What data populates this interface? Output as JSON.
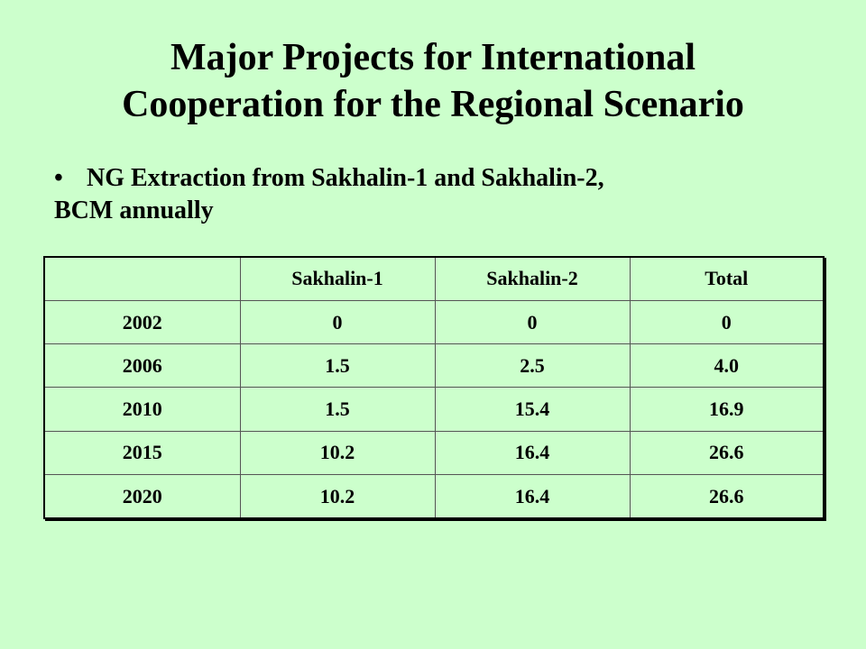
{
  "title": {
    "line1": "Major Projects for International",
    "line2": "Cooperation for the Regional Scenario"
  },
  "bullet": {
    "mark": "•",
    "line1": "NG Extraction from Sakhalin-1 and Sakhalin-2,",
    "line2": "BCM annually"
  },
  "table": {
    "headers": [
      "",
      "Sakhalin-1",
      "Sakhalin-2",
      "Total"
    ],
    "rows": [
      [
        "2002",
        "0",
        "0",
        "0"
      ],
      [
        "2006",
        "1.5",
        "2.5",
        "4.0"
      ],
      [
        "2010",
        "1.5",
        "15.4",
        "16.9"
      ],
      [
        "2015",
        "10.2",
        "16.4",
        "26.6"
      ],
      [
        "2020",
        "10.2",
        "16.4",
        "26.6"
      ]
    ]
  }
}
